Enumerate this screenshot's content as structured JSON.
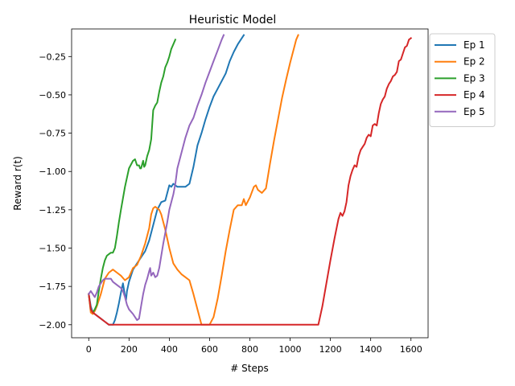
{
  "chart_data": {
    "type": "line",
    "title": "Heuristic Model",
    "xlabel": "# Steps",
    "ylabel": "Reward r(t)",
    "xlim": [
      -85,
      1685
    ],
    "ylim": [
      -2.085,
      -0.07
    ],
    "xticks": [
      0,
      200,
      400,
      600,
      800,
      1000,
      1200,
      1400,
      1600
    ],
    "xtick_labels": [
      "0",
      "200",
      "400",
      "600",
      "800",
      "1000",
      "1200",
      "1400",
      "1600"
    ],
    "yticks": [
      -2.0,
      -1.75,
      -1.5,
      -1.25,
      -1.0,
      -0.75,
      -0.5,
      -0.25
    ],
    "ytick_labels": [
      "−2.00",
      "−1.75",
      "−1.50",
      "−1.25",
      "−1.00",
      "−0.75",
      "−0.50",
      "−0.25"
    ],
    "grid": false,
    "legend_position": "outside-top-right",
    "series": [
      {
        "name": "Ep 1",
        "color": "#1f77b4",
        "x": [
          0,
          10,
          20,
          40,
          60,
          80,
          100,
          120,
          130,
          140,
          150,
          160,
          170,
          180,
          185,
          190,
          200,
          220,
          240,
          260,
          280,
          300,
          320,
          340,
          360,
          380,
          390,
          400,
          410,
          420,
          430,
          440,
          460,
          480,
          500,
          520,
          540,
          560,
          580,
          600,
          620,
          640,
          660,
          680,
          700,
          720,
          740,
          760,
          770
        ],
        "y": [
          -1.8,
          -1.88,
          -1.92,
          -1.94,
          -1.96,
          -1.98,
          -2.0,
          -2.0,
          -1.97,
          -1.92,
          -1.86,
          -1.79,
          -1.73,
          -1.81,
          -1.84,
          -1.78,
          -1.72,
          -1.64,
          -1.6,
          -1.56,
          -1.52,
          -1.45,
          -1.35,
          -1.25,
          -1.2,
          -1.19,
          -1.14,
          -1.09,
          -1.1,
          -1.08,
          -1.09,
          -1.1,
          -1.1,
          -1.1,
          -1.08,
          -0.97,
          -0.83,
          -0.75,
          -0.66,
          -0.58,
          -0.51,
          -0.46,
          -0.41,
          -0.36,
          -0.28,
          -0.22,
          -0.17,
          -0.13,
          -0.11
        ]
      },
      {
        "name": "Ep 2",
        "color": "#ff7f0e",
        "x": [
          0,
          10,
          20,
          30,
          40,
          60,
          80,
          100,
          120,
          140,
          160,
          180,
          200,
          220,
          240,
          260,
          280,
          300,
          310,
          320,
          330,
          340,
          350,
          360,
          380,
          400,
          420,
          440,
          460,
          480,
          500,
          520,
          540,
          560,
          570,
          580,
          600,
          620,
          640,
          660,
          680,
          700,
          720,
          740,
          760,
          770,
          780,
          800,
          820,
          830,
          840,
          860,
          880,
          900,
          920,
          940,
          960,
          980,
          1000,
          1020,
          1030,
          1040
        ],
        "y": [
          -1.8,
          -1.92,
          -1.93,
          -1.91,
          -1.88,
          -1.8,
          -1.7,
          -1.66,
          -1.64,
          -1.66,
          -1.68,
          -1.71,
          -1.69,
          -1.63,
          -1.61,
          -1.55,
          -1.47,
          -1.37,
          -1.28,
          -1.24,
          -1.23,
          -1.24,
          -1.25,
          -1.28,
          -1.38,
          -1.5,
          -1.6,
          -1.64,
          -1.67,
          -1.69,
          -1.71,
          -1.8,
          -1.9,
          -2.0,
          -2.0,
          -2.0,
          -2.0,
          -1.95,
          -1.83,
          -1.68,
          -1.52,
          -1.38,
          -1.25,
          -1.22,
          -1.22,
          -1.18,
          -1.22,
          -1.17,
          -1.1,
          -1.09,
          -1.12,
          -1.14,
          -1.11,
          -0.95,
          -0.8,
          -0.66,
          -0.52,
          -0.4,
          -0.29,
          -0.19,
          -0.14,
          -0.11
        ]
      },
      {
        "name": "Ep 3",
        "color": "#2ca02c",
        "x": [
          0,
          10,
          20,
          30,
          40,
          50,
          60,
          70,
          80,
          90,
          100,
          110,
          120,
          130,
          140,
          150,
          160,
          180,
          200,
          220,
          230,
          240,
          250,
          255,
          260,
          270,
          275,
          280,
          290,
          300,
          310,
          320,
          330,
          340,
          350,
          360,
          370,
          380,
          390,
          400,
          410,
          420,
          430
        ],
        "y": [
          -1.8,
          -1.9,
          -1.92,
          -1.9,
          -1.87,
          -1.78,
          -1.7,
          -1.63,
          -1.58,
          -1.55,
          -1.54,
          -1.53,
          -1.53,
          -1.5,
          -1.42,
          -1.33,
          -1.25,
          -1.1,
          -0.98,
          -0.93,
          -0.92,
          -0.96,
          -0.96,
          -0.98,
          -0.98,
          -0.93,
          -0.97,
          -0.96,
          -0.9,
          -0.86,
          -0.79,
          -0.6,
          -0.57,
          -0.55,
          -0.48,
          -0.42,
          -0.38,
          -0.32,
          -0.29,
          -0.25,
          -0.2,
          -0.17,
          -0.14
        ]
      },
      {
        "name": "Ep 4",
        "color": "#d62728",
        "x": [
          0,
          10,
          20,
          40,
          60,
          80,
          100,
          120,
          300,
          600,
          900,
          1100,
          1140,
          1160,
          1180,
          1200,
          1220,
          1240,
          1250,
          1260,
          1270,
          1280,
          1290,
          1300,
          1310,
          1320,
          1330,
          1340,
          1350,
          1360,
          1370,
          1380,
          1390,
          1400,
          1410,
          1420,
          1430,
          1440,
          1450,
          1460,
          1470,
          1480,
          1490,
          1500,
          1510,
          1520,
          1530,
          1540,
          1550,
          1560,
          1570,
          1580,
          1590,
          1600
        ],
        "y": [
          -1.8,
          -1.9,
          -1.92,
          -1.94,
          -1.96,
          -1.98,
          -2.0,
          -2.0,
          -2.0,
          -2.0,
          -2.0,
          -2.0,
          -2.0,
          -1.88,
          -1.73,
          -1.58,
          -1.44,
          -1.31,
          -1.27,
          -1.29,
          -1.26,
          -1.2,
          -1.09,
          -1.03,
          -0.99,
          -0.96,
          -0.97,
          -0.9,
          -0.86,
          -0.84,
          -0.82,
          -0.78,
          -0.76,
          -0.77,
          -0.7,
          -0.69,
          -0.7,
          -0.62,
          -0.56,
          -0.53,
          -0.51,
          -0.46,
          -0.43,
          -0.41,
          -0.38,
          -0.37,
          -0.35,
          -0.28,
          -0.27,
          -0.23,
          -0.19,
          -0.18,
          -0.14,
          -0.13
        ]
      },
      {
        "name": "Ep 5",
        "color": "#9467bd",
        "x": [
          0,
          10,
          20,
          30,
          40,
          50,
          60,
          70,
          80,
          90,
          100,
          110,
          120,
          140,
          160,
          170,
          180,
          190,
          200,
          220,
          240,
          250,
          260,
          270,
          280,
          290,
          300,
          305,
          310,
          320,
          330,
          340,
          350,
          360,
          370,
          380,
          390,
          400,
          410,
          420,
          430,
          440,
          460,
          480,
          500,
          520,
          540,
          560,
          580,
          600,
          620,
          640,
          660,
          670
        ],
        "y": [
          -1.8,
          -1.78,
          -1.8,
          -1.82,
          -1.79,
          -1.75,
          -1.73,
          -1.71,
          -1.7,
          -1.7,
          -1.7,
          -1.7,
          -1.72,
          -1.74,
          -1.76,
          -1.78,
          -1.82,
          -1.87,
          -1.9,
          -1.93,
          -1.97,
          -1.96,
          -1.88,
          -1.8,
          -1.74,
          -1.7,
          -1.65,
          -1.63,
          -1.68,
          -1.66,
          -1.69,
          -1.68,
          -1.63,
          -1.55,
          -1.47,
          -1.4,
          -1.33,
          -1.25,
          -1.2,
          -1.15,
          -1.08,
          -0.98,
          -0.88,
          -0.78,
          -0.7,
          -0.65,
          -0.57,
          -0.5,
          -0.42,
          -0.35,
          -0.28,
          -0.21,
          -0.14,
          -0.11
        ]
      }
    ]
  }
}
